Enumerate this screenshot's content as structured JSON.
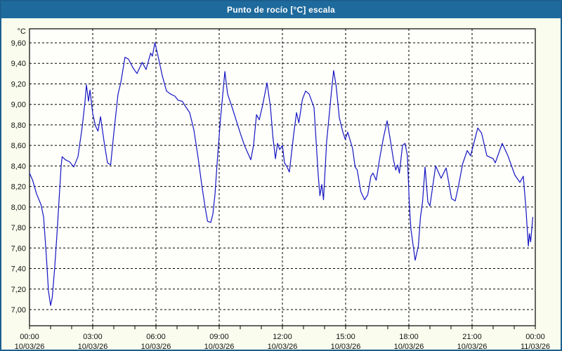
{
  "window": {
    "title": "Punto de rocío [°C] escala"
  },
  "colors": {
    "titlebar_bg": "#1e6a9c",
    "window_border": "#1c5f8f",
    "page_bg": "#fafdee",
    "plot_bg": "#fefefb",
    "grid": "#000000",
    "axis": "#000000",
    "line": "#1515c3",
    "title_text": "#ffffff",
    "tick_text": "#111111"
  },
  "chart_data": {
    "type": "line",
    "title": "Punto de rocío [°C] escala",
    "xlabel": "",
    "ylabel": "°C",
    "grid": "dashed",
    "legend_position": "none",
    "y_axis": {
      "min": 7.0,
      "max": 9.6,
      "tick_step": 0.2,
      "display_range": [
        6.85,
        9.77
      ],
      "tick_labels": [
        "9,60",
        "9,40",
        "9,20",
        "9,00",
        "8,80",
        "8,60",
        "8,40",
        "8,20",
        "8,00",
        "7,80",
        "7,60",
        "7,40",
        "7,20",
        "7,00"
      ]
    },
    "x_axis": {
      "unit": "hours",
      "range_hours": [
        0,
        24
      ],
      "major_tick_hours": 3,
      "minor_tick_hours": 1,
      "ticks": [
        {
          "hour": 0,
          "time": "00:00",
          "date": "10/03/26"
        },
        {
          "hour": 3,
          "time": "03:00",
          "date": "10/03/26"
        },
        {
          "hour": 6,
          "time": "06:00",
          "date": "10/03/26"
        },
        {
          "hour": 9,
          "time": "09:00",
          "date": "10/03/26"
        },
        {
          "hour": 12,
          "time": "12:00",
          "date": "10/03/26"
        },
        {
          "hour": 15,
          "time": "15:00",
          "date": "10/03/26"
        },
        {
          "hour": 18,
          "time": "18:00",
          "date": "10/03/26"
        },
        {
          "hour": 21,
          "time": "21:00",
          "date": "10/03/26"
        },
        {
          "hour": 24,
          "time": "00:00",
          "date": "11/03/26"
        }
      ]
    },
    "series": [
      {
        "name": "Punto de rocío [°C]",
        "color": "#1515c3",
        "points": [
          [
            0.0,
            8.33
          ],
          [
            0.15,
            8.26
          ],
          [
            0.33,
            8.13
          ],
          [
            0.55,
            8.02
          ],
          [
            0.67,
            7.9
          ],
          [
            0.8,
            7.52
          ],
          [
            0.9,
            7.18
          ],
          [
            1.0,
            7.04
          ],
          [
            1.08,
            7.12
          ],
          [
            1.2,
            7.42
          ],
          [
            1.33,
            7.82
          ],
          [
            1.5,
            8.4
          ],
          [
            1.55,
            8.49
          ],
          [
            1.7,
            8.46
          ],
          [
            1.9,
            8.44
          ],
          [
            2.1,
            8.39
          ],
          [
            2.3,
            8.49
          ],
          [
            2.5,
            8.78
          ],
          [
            2.63,
            9.02
          ],
          [
            2.7,
            9.19
          ],
          [
            2.8,
            9.03
          ],
          [
            2.87,
            9.14
          ],
          [
            3.0,
            8.91
          ],
          [
            3.13,
            8.79
          ],
          [
            3.25,
            8.74
          ],
          [
            3.37,
            8.88
          ],
          [
            3.55,
            8.62
          ],
          [
            3.7,
            8.43
          ],
          [
            3.85,
            8.41
          ],
          [
            4.0,
            8.72
          ],
          [
            4.2,
            9.1
          ],
          [
            4.33,
            9.21
          ],
          [
            4.53,
            9.46
          ],
          [
            4.7,
            9.44
          ],
          [
            4.9,
            9.36
          ],
          [
            5.1,
            9.3
          ],
          [
            5.35,
            9.41
          ],
          [
            5.53,
            9.34
          ],
          [
            5.75,
            9.5
          ],
          [
            5.83,
            9.47
          ],
          [
            5.95,
            9.6
          ],
          [
            6.1,
            9.47
          ],
          [
            6.3,
            9.28
          ],
          [
            6.5,
            9.13
          ],
          [
            6.7,
            9.1
          ],
          [
            6.9,
            9.08
          ],
          [
            7.05,
            9.04
          ],
          [
            7.25,
            9.03
          ],
          [
            7.4,
            8.98
          ],
          [
            7.6,
            8.92
          ],
          [
            7.8,
            8.75
          ],
          [
            8.0,
            8.48
          ],
          [
            8.17,
            8.22
          ],
          [
            8.33,
            8.0
          ],
          [
            8.45,
            7.86
          ],
          [
            8.6,
            7.85
          ],
          [
            8.7,
            7.93
          ],
          [
            8.8,
            8.12
          ],
          [
            8.9,
            8.42
          ],
          [
            9.05,
            8.83
          ],
          [
            9.27,
            9.32
          ],
          [
            9.4,
            9.1
          ],
          [
            9.5,
            9.04
          ],
          [
            9.63,
            8.96
          ],
          [
            9.8,
            8.85
          ],
          [
            10.0,
            8.72
          ],
          [
            10.2,
            8.6
          ],
          [
            10.5,
            8.46
          ],
          [
            10.63,
            8.6
          ],
          [
            10.77,
            8.9
          ],
          [
            10.9,
            8.85
          ],
          [
            11.05,
            8.98
          ],
          [
            11.27,
            9.21
          ],
          [
            11.43,
            8.98
          ],
          [
            11.55,
            8.68
          ],
          [
            11.67,
            8.47
          ],
          [
            11.77,
            8.62
          ],
          [
            11.87,
            8.56
          ],
          [
            12.0,
            8.6
          ],
          [
            12.1,
            8.43
          ],
          [
            12.22,
            8.39
          ],
          [
            12.33,
            8.34
          ],
          [
            12.53,
            8.7
          ],
          [
            12.67,
            8.92
          ],
          [
            12.78,
            8.82
          ],
          [
            12.95,
            9.05
          ],
          [
            13.1,
            9.13
          ],
          [
            13.27,
            9.1
          ],
          [
            13.5,
            8.97
          ],
          [
            13.7,
            8.31
          ],
          [
            13.78,
            8.11
          ],
          [
            13.87,
            8.22
          ],
          [
            13.95,
            8.07
          ],
          [
            14.1,
            8.64
          ],
          [
            14.33,
            9.13
          ],
          [
            14.43,
            9.33
          ],
          [
            14.55,
            9.18
          ],
          [
            14.7,
            8.87
          ],
          [
            14.87,
            8.73
          ],
          [
            14.98,
            8.66
          ],
          [
            15.1,
            8.73
          ],
          [
            15.33,
            8.57
          ],
          [
            15.45,
            8.39
          ],
          [
            15.55,
            8.36
          ],
          [
            15.72,
            8.15
          ],
          [
            15.9,
            8.07
          ],
          [
            16.05,
            8.12
          ],
          [
            16.2,
            8.3
          ],
          [
            16.3,
            8.33
          ],
          [
            16.45,
            8.26
          ],
          [
            16.63,
            8.49
          ],
          [
            16.8,
            8.68
          ],
          [
            16.97,
            8.84
          ],
          [
            17.1,
            8.68
          ],
          [
            17.27,
            8.46
          ],
          [
            17.38,
            8.36
          ],
          [
            17.47,
            8.41
          ],
          [
            17.55,
            8.33
          ],
          [
            17.7,
            8.6
          ],
          [
            17.82,
            8.62
          ],
          [
            17.93,
            8.5
          ],
          [
            18.03,
            8.0
          ],
          [
            18.1,
            7.78
          ],
          [
            18.3,
            7.48
          ],
          [
            18.45,
            7.62
          ],
          [
            18.55,
            7.9
          ],
          [
            18.65,
            8.05
          ],
          [
            18.77,
            8.39
          ],
          [
            18.9,
            8.05
          ],
          [
            19.0,
            8.01
          ],
          [
            19.27,
            8.4
          ],
          [
            19.53,
            8.28
          ],
          [
            19.77,
            8.38
          ],
          [
            20.03,
            8.08
          ],
          [
            20.2,
            8.06
          ],
          [
            20.37,
            8.22
          ],
          [
            20.55,
            8.42
          ],
          [
            20.77,
            8.55
          ],
          [
            20.93,
            8.5
          ],
          [
            21.27,
            8.77
          ],
          [
            21.45,
            8.72
          ],
          [
            21.7,
            8.5
          ],
          [
            22.0,
            8.47
          ],
          [
            22.1,
            8.43
          ],
          [
            22.43,
            8.62
          ],
          [
            22.7,
            8.5
          ],
          [
            23.03,
            8.31
          ],
          [
            23.27,
            8.24
          ],
          [
            23.43,
            8.3
          ],
          [
            23.55,
            8.0
          ],
          [
            23.67,
            7.62
          ],
          [
            23.72,
            7.74
          ],
          [
            23.78,
            7.66
          ],
          [
            23.88,
            7.9
          ]
        ]
      }
    ]
  }
}
